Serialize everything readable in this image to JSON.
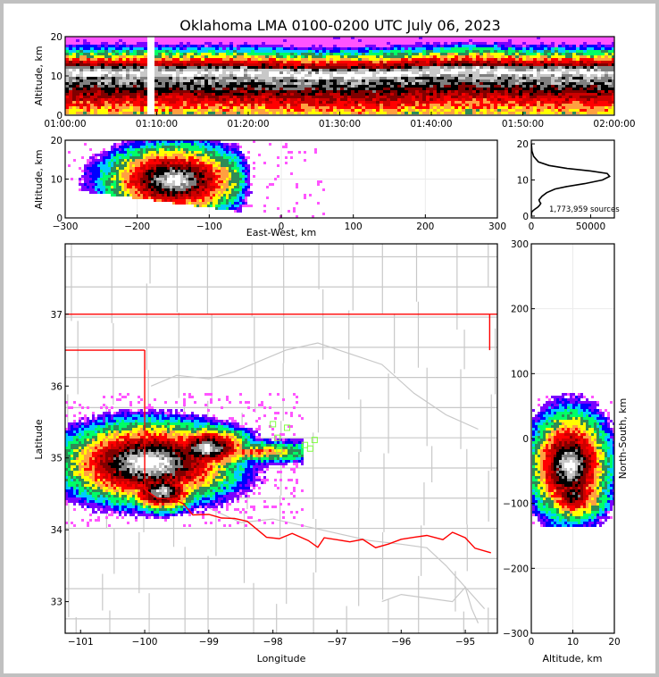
{
  "title": "Oklahoma LMA 0100-0200 UTC July 06, 2023",
  "colors": {
    "density_scale": [
      "#ff55ff",
      "#7a00ff",
      "#0000ff",
      "#00ccff",
      "#00ff66",
      "#2e8b57",
      "#ffff00",
      "#ffa040",
      "#ff0000",
      "#cc0000",
      "#800000",
      "#000000",
      "#808080",
      "#c8c8c8",
      "#ffffff"
    ],
    "state_border": "#ff0000",
    "county_border": "#c8c8c8",
    "station_marker": "#80ff40",
    "grid": "#ebebeb"
  },
  "chart_data": [
    {
      "type": "heatmap",
      "name": "time-height",
      "xlabel": "",
      "ylabel": "Altitude, km",
      "x_ticks": [
        "01:00:00",
        "01:10:00",
        "01:20:00",
        "01:30:00",
        "01:40:00",
        "01:50:00",
        "02:00:00"
      ],
      "y_ticks": [
        "0",
        "10",
        "20"
      ],
      "xlim_minutes": [
        0,
        60
      ],
      "ylim": [
        0,
        20
      ],
      "data_gap_minutes": [
        8.8,
        9.6
      ],
      "core_altitude_km": [
        [
          0,
          11
        ],
        [
          9,
          11
        ],
        [
          15,
          11
        ],
        [
          20,
          11
        ],
        [
          25,
          10.5
        ],
        [
          30,
          10.5
        ],
        [
          34,
          10.5
        ],
        [
          38,
          11
        ],
        [
          42,
          11.5
        ],
        [
          46,
          11.5
        ],
        [
          50,
          11
        ],
        [
          55,
          11
        ],
        [
          60,
          11
        ]
      ]
    },
    {
      "type": "heatmap",
      "name": "east-west-altitude",
      "xlabel": "East-West, km",
      "ylabel": "Altitude, km",
      "x_ticks": [
        "−300",
        "−200",
        "−100",
        "0",
        "100",
        "200",
        "300"
      ],
      "y_ticks": [
        "0",
        "10",
        "20"
      ],
      "xlim": [
        -300,
        300
      ],
      "ylim": [
        0,
        20
      ],
      "grid": true,
      "core_center_km": [
        -170,
        11
      ]
    },
    {
      "type": "line",
      "name": "altitude-histogram",
      "annotation": "1,773,959 sources",
      "x_ticks": [
        "0",
        "50000"
      ],
      "y_ticks": [
        "0",
        "10",
        "20"
      ],
      "xlim": [
        0,
        70000
      ],
      "ylim": [
        -0.5,
        21
      ],
      "x": [
        0,
        200,
        800,
        2500,
        5500,
        7000,
        8000,
        7000,
        6500,
        9000,
        13000,
        20000,
        30000,
        45000,
        60000,
        66000,
        64000,
        50000,
        30000,
        15000,
        6000,
        2000,
        500,
        100
      ],
      "y": [
        0,
        1,
        1.3,
        1.8,
        2.5,
        3,
        3.5,
        4,
        4.5,
        5.5,
        6.5,
        7.5,
        8.2,
        9,
        10,
        11,
        11.8,
        12.5,
        13.2,
        14,
        15,
        16.5,
        18,
        20
      ]
    },
    {
      "type": "heatmap",
      "name": "plan-view-map",
      "xlabel": "Longitude",
      "ylabel": "Latitude",
      "x_ticks": [
        "−101",
        "−100",
        "−99",
        "−98",
        "−97",
        "−96",
        "−95"
      ],
      "y_ticks": [
        "33",
        "34",
        "35",
        "36",
        "37"
      ],
      "xlim": [
        -101.24,
        -94.5
      ],
      "ylim": [
        32.56,
        37.98
      ],
      "stations": [
        [
          -98.0,
          35.47
        ],
        [
          -97.78,
          35.42
        ],
        [
          -97.5,
          35.18
        ],
        [
          -97.35,
          35.25
        ],
        [
          -97.93,
          35.28
        ],
        [
          -97.42,
          35.13
        ],
        [
          -97.9,
          35.1
        ]
      ],
      "core_center": [
        -99.95,
        34.95
      ]
    },
    {
      "type": "heatmap",
      "name": "north-south-altitude",
      "xlabel": "Altitude, km",
      "ylabel": "North-South, km",
      "x_ticks": [
        "0",
        "10",
        "20"
      ],
      "y_ticks": [
        "−300",
        "−200",
        "−100",
        "0",
        "100",
        "200",
        "300"
      ],
      "xlim": [
        0,
        20
      ],
      "ylim": [
        -300,
        300
      ],
      "grid": true,
      "core_center_km": [
        10,
        -40
      ]
    }
  ]
}
